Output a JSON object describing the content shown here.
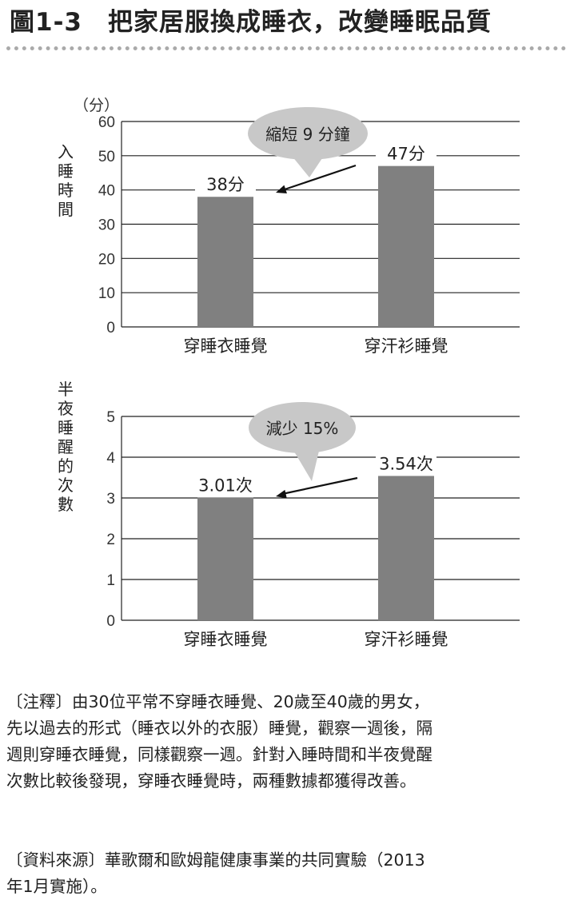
{
  "title": "圖1-3　把家居服換成睡衣，改變睡眠品質",
  "chart_data": [
    {
      "type": "bar",
      "unit_label": "（分）",
      "ylabel": "入睡時間",
      "categories": [
        "穿睡衣睡覺",
        "穿汗衫睡覺"
      ],
      "values": [
        38,
        47
      ],
      "data_labels": [
        "38分",
        "47分"
      ],
      "ylim": [
        0,
        60
      ],
      "yticks": [
        0,
        10,
        20,
        30,
        40,
        50,
        60
      ],
      "grid": true,
      "bar_color": "#808080",
      "annotation": "縮短 9 分鐘"
    },
    {
      "type": "bar",
      "unit_label": "",
      "ylabel": "半夜睡醒的次數",
      "categories": [
        "穿睡衣睡覺",
        "穿汗衫睡覺"
      ],
      "values": [
        3.01,
        3.54
      ],
      "data_labels": [
        "3.01次",
        "3.54次"
      ],
      "ylim": [
        0,
        5
      ],
      "yticks": [
        0,
        1,
        2,
        3,
        4,
        5
      ],
      "grid": true,
      "bar_color": "#808080",
      "annotation": "減少 15%"
    }
  ],
  "notes": {
    "note_lines": [
      "〔注釋〕由30位平常不穿睡衣睡覺、20歲至40歲的男女，",
      "先以過去的形式（睡衣以外的衣服）睡覺，觀察一週後，隔",
      "週則穿睡衣睡覺，同樣觀察一週。針對入睡時間和半夜覺醒",
      "次數比較後發現，穿睡衣睡覺時，兩種數據都獲得改善。"
    ],
    "source_lines": [
      "〔資料來源〕華歌爾和歐姆龍健康事業的共同實驗（2013",
      "年1月實施）。"
    ]
  }
}
